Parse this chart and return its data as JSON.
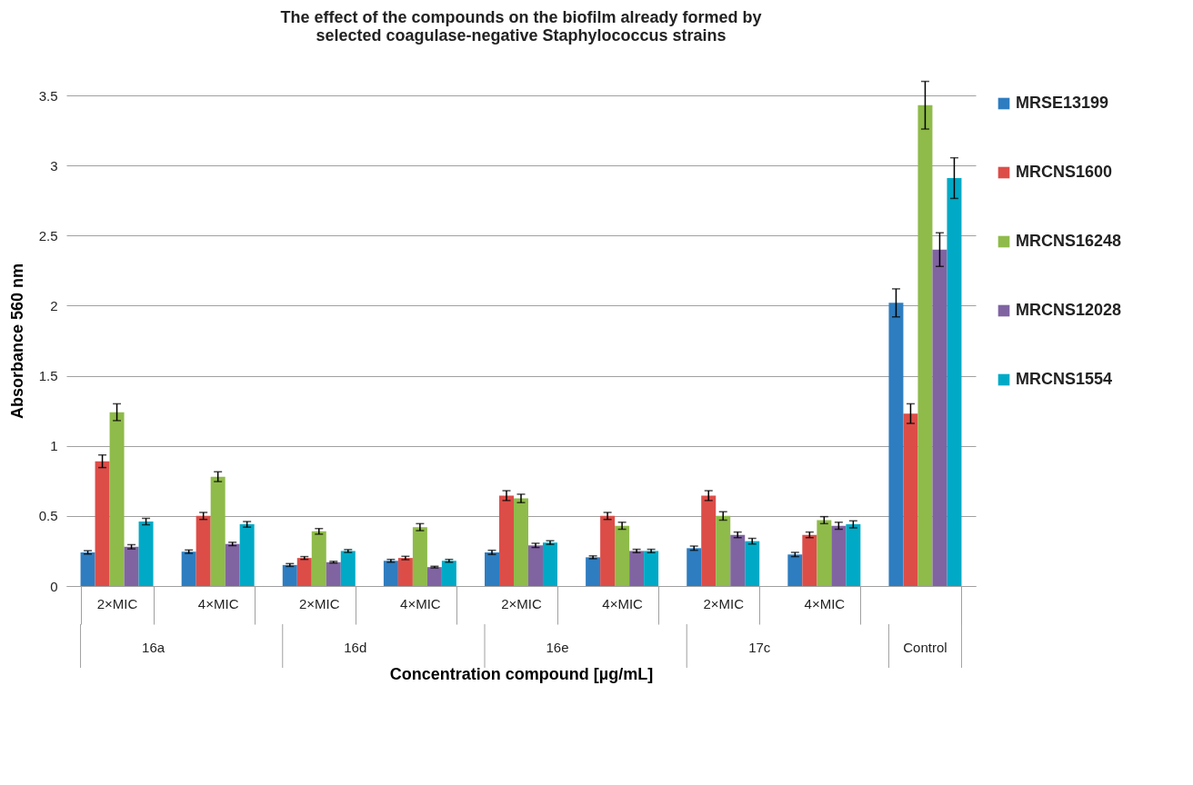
{
  "chart_data": {
    "type": "bar",
    "title": "The effect of the compounds on the biofilm already formed by\nselected coagulase-negative Staphylococcus strains",
    "xlabel": "Concentration compound [µg/mL]",
    "ylabel": "Absorbance 560 nm",
    "categories": [
      "2×MIC",
      "4×MIC",
      "2×MIC",
      "4×MIC",
      "2×MIC",
      "4×MIC",
      "2×MIC",
      "4×MIC",
      null
    ],
    "annotations": [
      "16a",
      "16d",
      "16e",
      "17c",
      "Control"
    ],
    "series": [
      {
        "name": "MRSE13199",
        "color": "#2e7dc0",
        "values": [
          0.24,
          0.245,
          0.15,
          0.18,
          0.24,
          0.205,
          0.27,
          0.225,
          2.02
        ],
        "errors": [
          0.012,
          0.012,
          0.01,
          0.01,
          0.015,
          0.01,
          0.015,
          0.015,
          0.1
        ]
      },
      {
        "name": "MRCNS1600",
        "color": "#dd4d48",
        "values": [
          0.89,
          0.5,
          0.2,
          0.2,
          0.645,
          0.5,
          0.645,
          0.365,
          1.23
        ],
        "errors": [
          0.045,
          0.025,
          0.01,
          0.012,
          0.035,
          0.025,
          0.035,
          0.02,
          0.07
        ]
      },
      {
        "name": "MRCNS16248",
        "color": "#8fbb4a",
        "values": [
          1.24,
          0.78,
          0.39,
          0.42,
          0.625,
          0.43,
          0.5,
          0.47,
          3.43
        ],
        "errors": [
          0.06,
          0.035,
          0.02,
          0.025,
          0.03,
          0.025,
          0.03,
          0.025,
          0.17
        ]
      },
      {
        "name": "MRCNS12028",
        "color": "#8064a2",
        "values": [
          0.28,
          0.3,
          0.17,
          0.135,
          0.29,
          0.25,
          0.365,
          0.43,
          2.4
        ],
        "errors": [
          0.015,
          0.012,
          0.006,
          0.006,
          0.015,
          0.012,
          0.02,
          0.025,
          0.12
        ]
      },
      {
        "name": "MRCNS1554",
        "color": "#00aac6",
        "values": [
          0.46,
          0.44,
          0.25,
          0.18,
          0.31,
          0.25,
          0.32,
          0.44,
          2.91
        ],
        "errors": [
          0.023,
          0.02,
          0.01,
          0.01,
          0.013,
          0.012,
          0.02,
          0.025,
          0.145
        ]
      }
    ],
    "ylim": [
      0,
      3.5
    ],
    "yticks": [
      0,
      0.5,
      1,
      1.5,
      2,
      2.5,
      3,
      3.5
    ],
    "grid": "y",
    "legend": "right"
  }
}
